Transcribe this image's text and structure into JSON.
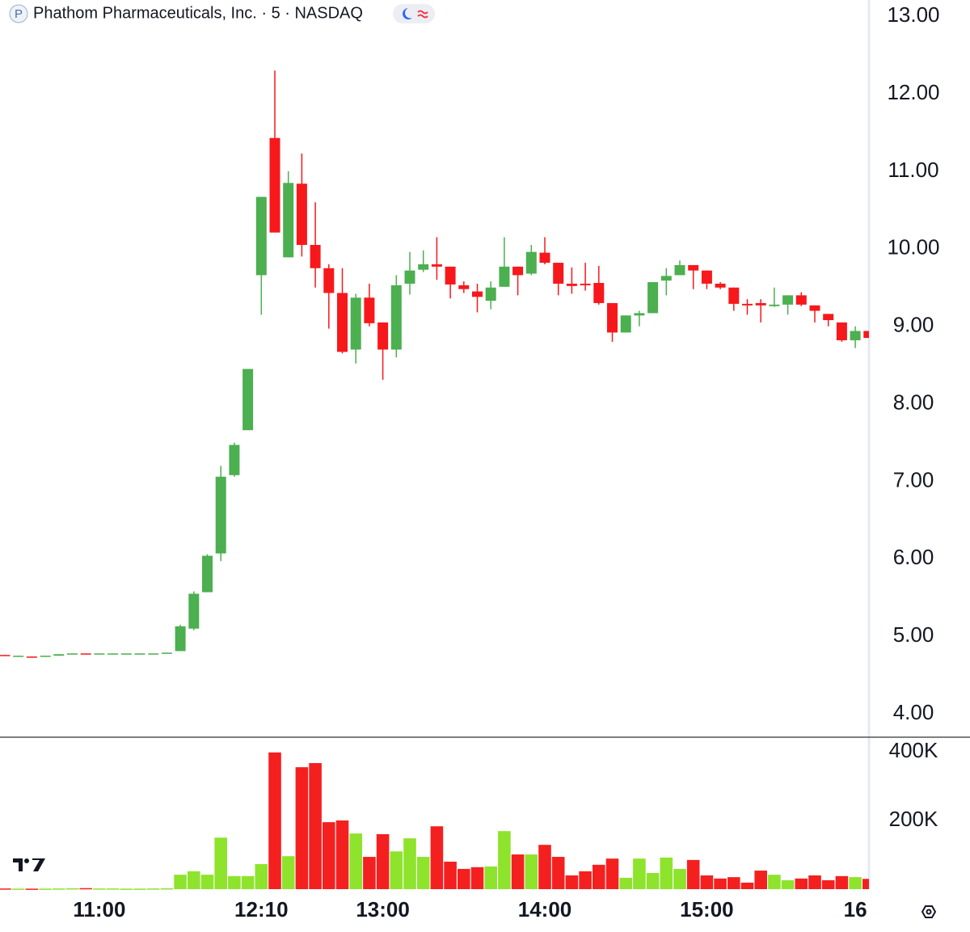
{
  "header": {
    "logo": "P",
    "title": "Phathom Pharmaceuticals, Inc. · 5 · NASDAQ"
  },
  "chart_data": [
    {
      "type": "candlestick",
      "categories": [
        null,
        null,
        null,
        null,
        null,
        null,
        null,
        "11:00",
        null,
        null,
        null,
        null,
        null,
        null,
        null,
        null,
        null,
        null,
        null,
        "12:10",
        null,
        null,
        null,
        null,
        null,
        null,
        null,
        null,
        "13:00",
        null,
        null,
        null,
        null,
        null,
        null,
        null,
        null,
        null,
        null,
        null,
        "14:00",
        null,
        null,
        null,
        null,
        null,
        null,
        null,
        null,
        null,
        null,
        null,
        "15:00",
        null,
        null,
        null,
        null,
        null,
        null,
        null,
        null,
        null,
        null,
        "16",
        null
      ],
      "open": [
        4.76,
        4.74,
        4.74,
        4.74,
        4.75,
        4.77,
        4.78,
        4.77,
        4.78,
        4.78,
        4.78,
        4.78,
        4.78,
        4.81,
        5.1,
        5.57,
        6.07,
        7.08,
        7.66,
        9.66,
        11.43,
        9.89,
        10.84,
        10.05,
        9.75,
        9.43,
        8.7,
        9.37,
        9.05,
        8.7,
        9.55,
        9.73,
        9.8,
        9.77,
        9.53,
        9.45,
        9.33,
        9.51,
        9.77,
        9.68,
        9.95,
        9.82,
        9.55,
        9.55,
        9.56,
        9.3,
        8.92,
        9.14,
        9.17,
        9.59,
        9.66,
        9.79,
        9.72,
        9.55,
        9.5,
        9.29,
        9.3,
        9.26,
        9.28,
        9.4,
        9.27,
        9.16,
        9.05,
        8.82,
        8.94
      ],
      "high": [
        4.76,
        4.75,
        4.74,
        4.75,
        4.77,
        4.78,
        4.78,
        4.78,
        4.78,
        4.78,
        4.78,
        4.78,
        4.79,
        5.15,
        5.58,
        6.06,
        7.2,
        7.5,
        8.45,
        10.67,
        12.3,
        11.0,
        11.23,
        10.6,
        9.8,
        9.75,
        9.42,
        9.55,
        9.05,
        9.66,
        9.96,
        9.98,
        10.15,
        9.77,
        9.58,
        9.55,
        9.58,
        10.15,
        9.77,
        10.05,
        10.15,
        9.82,
        9.76,
        9.82,
        9.78,
        9.3,
        9.14,
        9.2,
        9.57,
        9.75,
        9.85,
        9.79,
        9.72,
        9.57,
        9.5,
        9.35,
        9.35,
        9.5,
        9.4,
        9.44,
        9.27,
        9.16,
        9.05,
        9.0,
        8.94
      ],
      "low": [
        4.75,
        4.74,
        4.73,
        4.74,
        4.75,
        4.77,
        4.77,
        4.77,
        4.78,
        4.78,
        4.78,
        4.78,
        4.78,
        4.81,
        5.08,
        5.57,
        5.97,
        7.06,
        7.66,
        9.15,
        10.21,
        9.89,
        9.9,
        9.5,
        8.97,
        8.65,
        8.52,
        9.0,
        8.31,
        8.6,
        9.41,
        9.7,
        9.6,
        9.36,
        9.43,
        9.18,
        9.22,
        9.51,
        9.4,
        9.66,
        9.8,
        9.4,
        9.42,
        9.46,
        9.28,
        8.8,
        8.92,
        9.0,
        9.17,
        9.4,
        9.66,
        9.48,
        9.48,
        9.48,
        9.2,
        9.15,
        9.05,
        9.25,
        9.15,
        9.26,
        9.05,
        9.0,
        8.8,
        8.72,
        8.85
      ],
      "close": [
        4.75,
        4.75,
        4.73,
        4.75,
        4.77,
        4.78,
        4.77,
        4.78,
        4.78,
        4.78,
        4.78,
        4.78,
        4.79,
        5.13,
        5.55,
        6.04,
        7.06,
        7.47,
        8.45,
        10.67,
        10.21,
        10.85,
        10.05,
        9.75,
        9.43,
        8.67,
        9.37,
        9.04,
        8.7,
        9.53,
        9.72,
        9.8,
        9.77,
        9.54,
        9.48,
        9.38,
        9.5,
        9.77,
        9.66,
        9.96,
        9.82,
        9.55,
        9.52,
        9.53,
        9.3,
        8.92,
        9.14,
        9.17,
        9.57,
        9.65,
        9.79,
        9.72,
        9.55,
        9.5,
        9.29,
        9.27,
        9.27,
        9.28,
        9.4,
        9.28,
        9.2,
        9.08,
        8.82,
        8.94,
        8.85
      ],
      "up_color": "#4caf50",
      "down_color": "#f7181c",
      "ylim": [
        3.72,
        13.21
      ],
      "yticks": [
        {
          "value": 4,
          "label": "4.00"
        },
        {
          "value": 5,
          "label": "5.00"
        },
        {
          "value": 6,
          "label": "6.00"
        },
        {
          "value": 7,
          "label": "7.00"
        },
        {
          "value": 8,
          "label": "8.00"
        },
        {
          "value": 9,
          "label": "9.00"
        },
        {
          "value": 10,
          "label": "10.00"
        },
        {
          "value": 11,
          "label": "11.00"
        },
        {
          "value": 12,
          "label": "12.00"
        },
        {
          "value": 13,
          "label": "13.00"
        }
      ]
    },
    {
      "type": "bar",
      "values": [
        2000,
        1500,
        1500,
        1500,
        2000,
        2500,
        3000,
        2000,
        2000,
        1500,
        1500,
        2000,
        2500,
        42000,
        52000,
        42000,
        150000,
        38000,
        38000,
        73000,
        398000,
        96000,
        355000,
        367000,
        195000,
        200000,
        162000,
        94000,
        160000,
        110000,
        148000,
        94000,
        183000,
        80000,
        59000,
        64000,
        66000,
        169000,
        101000,
        101000,
        129000,
        94000,
        40000,
        52000,
        71000,
        89000,
        33000,
        89000,
        47000,
        92000,
        59000,
        85000,
        40000,
        31000,
        35000,
        19000,
        54000,
        42000,
        26000,
        31000,
        40000,
        26000,
        38000,
        35000,
        30000
      ],
      "up_color": "#8ee32c",
      "down_color": "#f42020",
      "ylim": [
        0,
        440000
      ],
      "yticks": [
        {
          "value": 200000,
          "label": "200K"
        },
        {
          "value": 400000,
          "label": "400K"
        }
      ]
    }
  ]
}
